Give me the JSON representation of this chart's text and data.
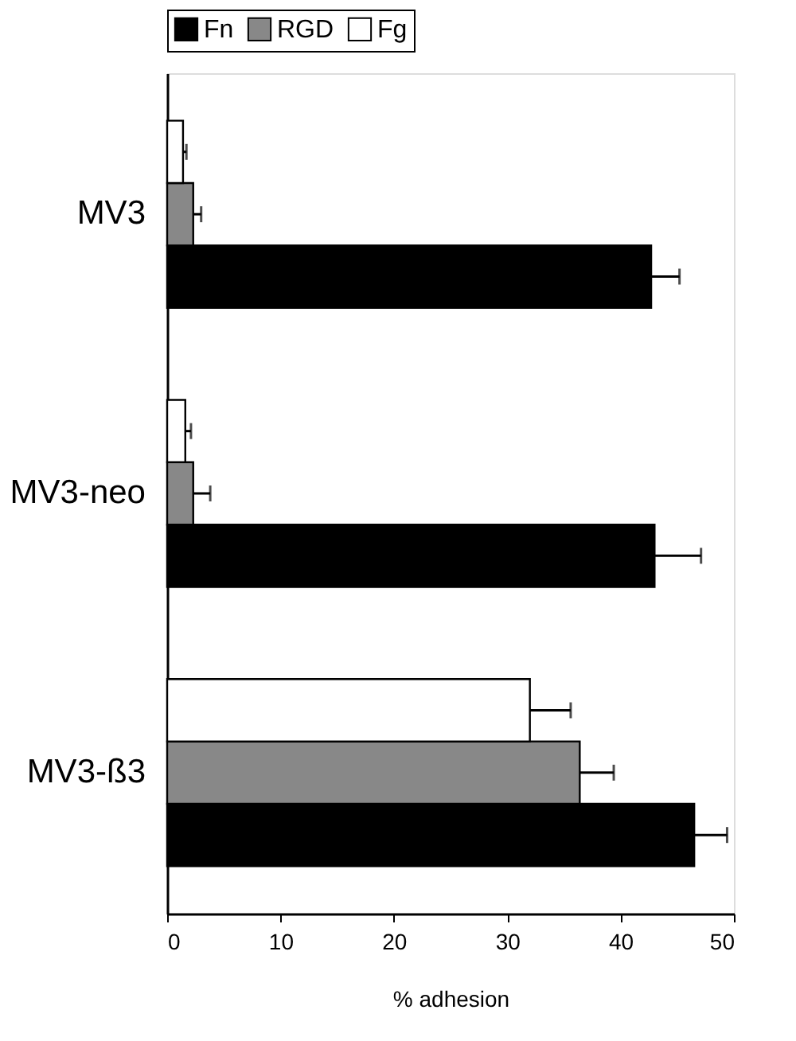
{
  "chart_data": {
    "type": "bar",
    "orientation": "horizontal",
    "xlabel": "% adhesion",
    "categories": [
      "MV3",
      "MV3-neo",
      "MV3-ß3"
    ],
    "series": [
      {
        "name": "Fn",
        "color": "#000000",
        "values": [
          42.7,
          43.0,
          46.5
        ],
        "errors": [
          [
            42.7,
            45.2
          ],
          [
            43.0,
            47.1
          ],
          [
            46.5,
            49.4
          ]
        ]
      },
      {
        "name": "RGD",
        "color": "#888888",
        "values": [
          2.3,
          2.3,
          36.4
        ],
        "errors": [
          [
            2.3,
            3.0
          ],
          [
            2.3,
            3.8
          ],
          [
            36.4,
            39.4
          ]
        ]
      },
      {
        "name": "Fg",
        "color": "#ffffff",
        "values": [
          1.4,
          1.6,
          32.0
        ],
        "errors": [
          [
            1.4,
            1.7
          ],
          [
            1.6,
            2.1
          ],
          [
            32.0,
            35.6
          ]
        ]
      }
    ],
    "xlim": [
      0,
      50
    ],
    "xticks": [
      0,
      10,
      20,
      30,
      40,
      50
    ],
    "grid": false,
    "legend": "top"
  }
}
